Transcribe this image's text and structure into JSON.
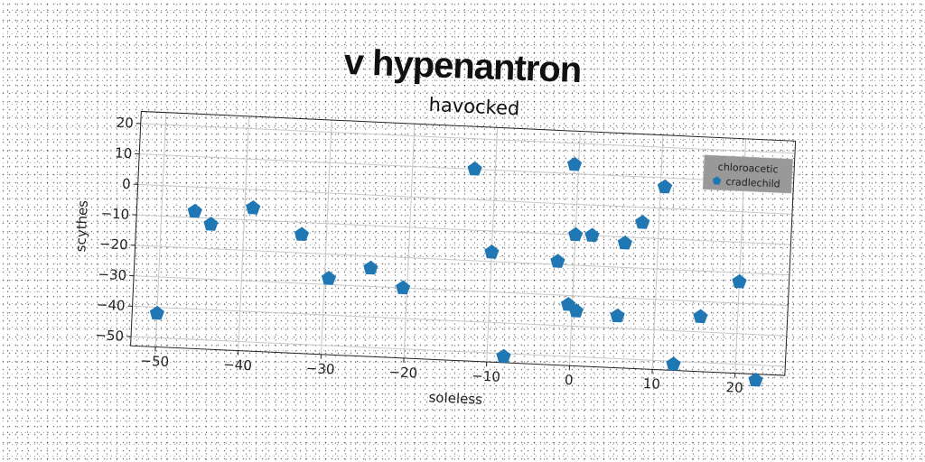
{
  "title": "v hypenantron",
  "chart_data": {
    "type": "scatter",
    "title": "havocked",
    "xlabel": "soleless",
    "ylabel": "scythes",
    "xlim": [
      -53,
      26
    ],
    "ylim": [
      -53,
      24
    ],
    "xticks": [
      -50,
      -40,
      -30,
      -20,
      -10,
      0,
      10,
      20
    ],
    "yticks": [
      -50,
      -40,
      -30,
      -20,
      -10,
      0,
      10,
      20
    ],
    "grid": true,
    "legend": {
      "title": "chloroacetic",
      "position": "top-right",
      "background": "#999999"
    },
    "series": [
      {
        "name": "cradlechild",
        "color": "#1f77b4",
        "marker": "pentagon",
        "points": [
          {
            "x": -50,
            "y": -42
          },
          {
            "x": -46,
            "y": -8
          },
          {
            "x": -44,
            "y": -12
          },
          {
            "x": -39,
            "y": -6
          },
          {
            "x": -33,
            "y": -14
          },
          {
            "x": -29.5,
            "y": -28
          },
          {
            "x": -24.5,
            "y": -24
          },
          {
            "x": -20.5,
            "y": -30
          },
          {
            "x": -12.5,
            "y": 10
          },
          {
            "x": -10,
            "y": -17
          },
          {
            "x": -8,
            "y": -51
          },
          {
            "x": -2,
            "y": -19
          },
          {
            "x": -0.5,
            "y": 13
          },
          {
            "x": 0,
            "y": -10
          },
          {
            "x": -0.5,
            "y": -33
          },
          {
            "x": 0.5,
            "y": -35
          },
          {
            "x": 2,
            "y": -10
          },
          {
            "x": 6,
            "y": -12
          },
          {
            "x": 5.5,
            "y": -36
          },
          {
            "x": 8,
            "y": -5
          },
          {
            "x": 10.5,
            "y": 7
          },
          {
            "x": 12.5,
            "y": -51
          },
          {
            "x": 15.5,
            "y": -35
          },
          {
            "x": 20,
            "y": -23
          },
          {
            "x": 22.5,
            "y": -55
          }
        ]
      }
    ]
  }
}
